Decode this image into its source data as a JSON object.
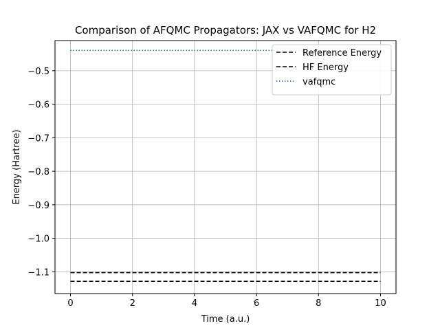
{
  "chart_data": {
    "type": "line",
    "title": "Comparison of AFQMC Propagators: JAX vs VAFQMC for H2",
    "xlabel": "Time (a.u.)",
    "ylabel": "Energy (Hartree)",
    "xlim": [
      -0.5,
      10.5
    ],
    "ylim": [
      -1.165,
      -0.41
    ],
    "x_ticks": [
      0,
      2,
      4,
      6,
      8,
      10
    ],
    "y_ticks": [
      -0.5,
      -0.6,
      -0.7,
      -0.8,
      -0.9,
      -1.0,
      -1.1
    ],
    "x_tick_labels": [
      "0",
      "2",
      "4",
      "6",
      "8",
      "10"
    ],
    "y_tick_labels": [
      "−0.5",
      "−0.6",
      "−0.7",
      "−0.8",
      "−0.9",
      "−1.0",
      "−1.1"
    ],
    "grid": true,
    "legend_position": "top-right",
    "series": [
      {
        "name": "Reference Energy",
        "style": "dashed",
        "color": "#000000",
        "x": [
          0,
          10
        ],
        "y": [
          -1.1026,
          -1.1026
        ]
      },
      {
        "name": "HF Energy",
        "style": "dashed",
        "color": "#000000",
        "x": [
          0,
          10
        ],
        "y": [
          -1.1284,
          -1.1284
        ]
      },
      {
        "name": "vafqmc",
        "style": "dotted",
        "color": "#1f77b4",
        "x": [
          0,
          10
        ],
        "y": [
          -0.4394,
          -0.4394
        ]
      }
    ]
  }
}
